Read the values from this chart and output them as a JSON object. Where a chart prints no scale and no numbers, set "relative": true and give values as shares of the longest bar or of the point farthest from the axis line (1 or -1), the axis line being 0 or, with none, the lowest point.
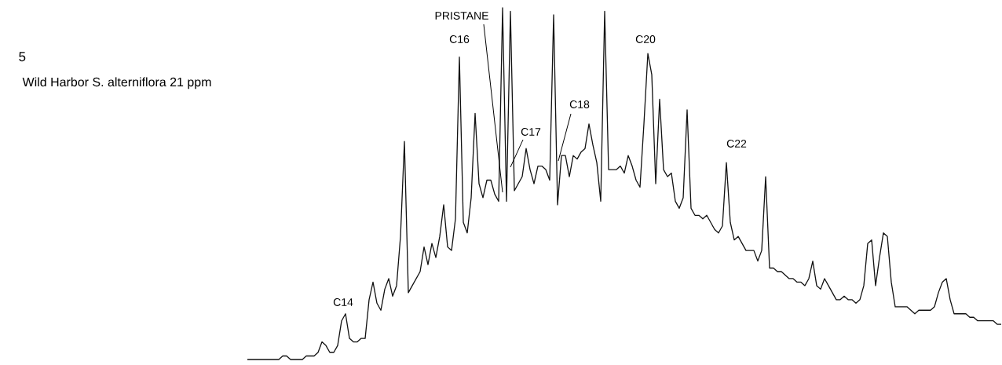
{
  "chart_data": {
    "type": "line",
    "relative": true,
    "title": "5",
    "subtitle": "Wild Harbor S. alterniflora 21 ppm",
    "annotations": [
      "C14",
      "C16",
      "PRISTANE",
      "C17",
      "C18",
      "C20",
      "C22"
    ],
    "categories": [
      null,
      null,
      null,
      null,
      null,
      null,
      null,
      null,
      null,
      null,
      null,
      null,
      null,
      null,
      null,
      null,
      null,
      null,
      null,
      null,
      null,
      null,
      null,
      null,
      null,
      null,
      null,
      null,
      null,
      null,
      null,
      null,
      null,
      null,
      null,
      null,
      null,
      null,
      null,
      null,
      null,
      null,
      null,
      null,
      null,
      null,
      null,
      null,
      null,
      null,
      null,
      null,
      null,
      null,
      null,
      null,
      null,
      null,
      null,
      null,
      null,
      null,
      null,
      null,
      null,
      null,
      null,
      null,
      null,
      null,
      null,
      null,
      null,
      null,
      null,
      null,
      null,
      null,
      null,
      null,
      null,
      null,
      null,
      null,
      null,
      null,
      null,
      null,
      null,
      null,
      null,
      null,
      null,
      null,
      null,
      null,
      null,
      null,
      null,
      null,
      null,
      null,
      null,
      null,
      null,
      null,
      null,
      null,
      null,
      null,
      null,
      null,
      null,
      null,
      null,
      null,
      null,
      null,
      null,
      null,
      null,
      null,
      null,
      null,
      null,
      null,
      null,
      null,
      null,
      null,
      null,
      null,
      null,
      null,
      null,
      null,
      null,
      null,
      null,
      null,
      null,
      null,
      null,
      null,
      null,
      null,
      null,
      null,
      null,
      null,
      null,
      null,
      null,
      null,
      null,
      null,
      null,
      null,
      null,
      null,
      null,
      null,
      null,
      null,
      null,
      null,
      null,
      null,
      null,
      null,
      null,
      null,
      null,
      null,
      null,
      null,
      null,
      null,
      null,
      null,
      null,
      null,
      null,
      null,
      null,
      null,
      null,
      null,
      null,
      null,
      null,
      null,
      null
    ],
    "series": [
      {
        "color": "#111111",
        "values": [
          0,
          0,
          0,
          0,
          0,
          0,
          0,
          0,
          0,
          0.01,
          0.01,
          0,
          0,
          0,
          0,
          0.01,
          0.01,
          0.01,
          0.02,
          0.05,
          0.04,
          0.02,
          0.02,
          0.04,
          0.11,
          0.13,
          0.06,
          0.05,
          0.05,
          0.06,
          0.06,
          0.17,
          0.22,
          0.16,
          0.14,
          0.2,
          0.23,
          0.18,
          0.21,
          0.35,
          0.62,
          0.19,
          0.21,
          0.23,
          0.25,
          0.32,
          0.27,
          0.33,
          0.29,
          0.35,
          0.44,
          0.32,
          0.31,
          0.4,
          0.86,
          0.39,
          0.36,
          0.46,
          0.7,
          0.5,
          0.46,
          0.51,
          0.51,
          0.47,
          0.45,
          1.0,
          0.45,
          0.99,
          0.48,
          0.5,
          0.52,
          0.6,
          0.54,
          0.5,
          0.55,
          0.55,
          0.54,
          0.51,
          0.98,
          0.44,
          0.58,
          0.58,
          0.52,
          0.58,
          0.57,
          0.59,
          0.6,
          0.67,
          0.61,
          0.56,
          0.45,
          0.99,
          0.54,
          0.54,
          0.54,
          0.55,
          0.53,
          0.58,
          0.55,
          0.51,
          0.49,
          0.67,
          0.87,
          0.81,
          0.5,
          0.74,
          0.54,
          0.52,
          0.53,
          0.45,
          0.43,
          0.46,
          0.71,
          0.43,
          0.41,
          0.41,
          0.4,
          0.41,
          0.39,
          0.37,
          0.36,
          0.38,
          0.56,
          0.39,
          0.34,
          0.35,
          0.33,
          0.31,
          0.31,
          0.31,
          0.28,
          0.31,
          0.52,
          0.26,
          0.26,
          0.25,
          0.25,
          0.24,
          0.23,
          0.23,
          0.22,
          0.22,
          0.21,
          0.23,
          0.28,
          0.21,
          0.2,
          0.23,
          0.21,
          0.19,
          0.17,
          0.17,
          0.18,
          0.17,
          0.17,
          0.16,
          0.17,
          0.21,
          0.33,
          0.34,
          0.21,
          0.29,
          0.36,
          0.35,
          0.22,
          0.15,
          0.15,
          0.15,
          0.15,
          0.14,
          0.13,
          0.14,
          0.14,
          0.14,
          0.14,
          0.15,
          0.19,
          0.22,
          0.23,
          0.17,
          0.13,
          0.13,
          0.13,
          0.13,
          0.12,
          0.12,
          0.11,
          0.11,
          0.11,
          0.11,
          0.11,
          0.1,
          0.1
        ]
      }
    ]
  }
}
